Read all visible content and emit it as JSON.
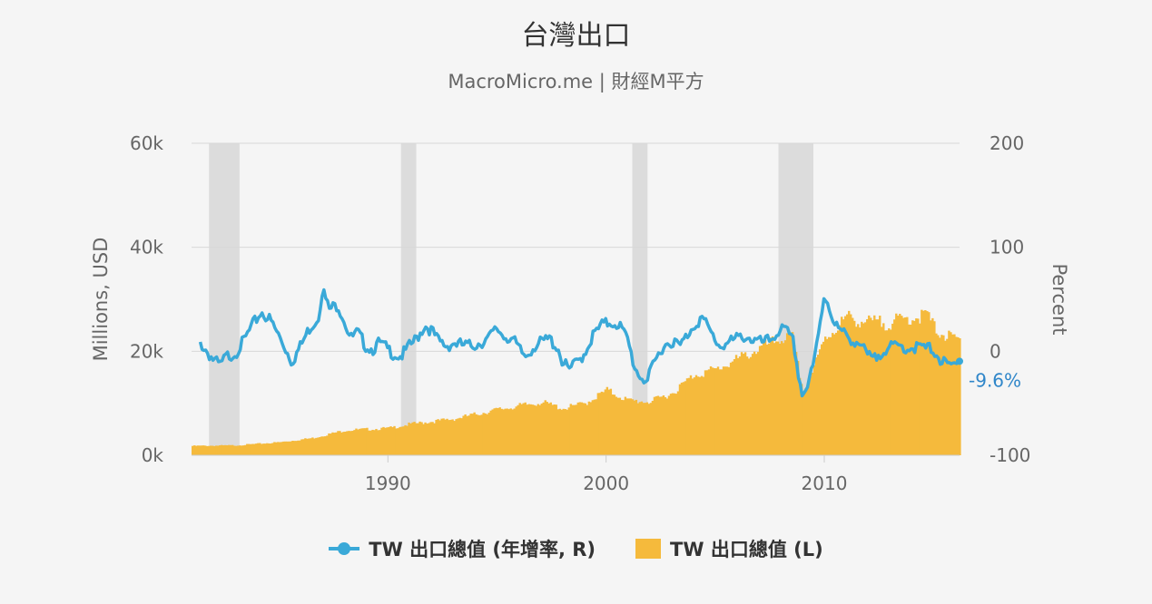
{
  "title": "台灣出口",
  "subtitle": "MacroMicro.me | 財經M平方",
  "colors": {
    "line": "#3aa9d8",
    "bar": "#f5ba3c",
    "recession": "#dcdcdc",
    "grid": "#d8d8d8",
    "last_label": "#2f86c9"
  },
  "chart_data": {
    "type": "bar+line",
    "title": "台灣出口",
    "subtitle": "MacroMicro.me | 財經M平方",
    "x_range": [
      1981.0,
      2016.2
    ],
    "x_ticks": [
      1990,
      2000,
      2010
    ],
    "left_axis": {
      "label": "Millions, USD",
      "range": [
        0,
        60000
      ],
      "ticks": [
        0,
        20000,
        40000,
        60000
      ],
      "tick_labels": [
        "0k",
        "20k",
        "40k",
        "60k"
      ]
    },
    "right_axis": {
      "label": "Percent",
      "range": [
        -100,
        200
      ],
      "ticks": [
        -100,
        0,
        100,
        200
      ],
      "tick_labels": [
        "-100",
        "0",
        "100",
        "200"
      ]
    },
    "recession_bands": [
      [
        1981.8,
        1983.2
      ],
      [
        1990.6,
        1991.3
      ],
      [
        2001.2,
        2001.9
      ],
      [
        2007.9,
        2009.5
      ]
    ],
    "series": [
      {
        "name": "TW 出口總值 (年增率, R)",
        "type": "line",
        "axis": "right",
        "points": [
          [
            1981.4,
            8
          ],
          [
            1981.7,
            0
          ],
          [
            1982.0,
            -8
          ],
          [
            1982.3,
            -14
          ],
          [
            1982.6,
            -5
          ],
          [
            1983.0,
            -2
          ],
          [
            1983.4,
            10
          ],
          [
            1983.8,
            25
          ],
          [
            1984.2,
            38
          ],
          [
            1984.6,
            30
          ],
          [
            1985.0,
            15
          ],
          [
            1985.3,
            3
          ],
          [
            1985.6,
            -10
          ],
          [
            1986.0,
            5
          ],
          [
            1986.4,
            22
          ],
          [
            1986.8,
            32
          ],
          [
            1987.0,
            60
          ],
          [
            1987.3,
            40
          ],
          [
            1987.7,
            45
          ],
          [
            1988.0,
            30
          ],
          [
            1988.3,
            12
          ],
          [
            1988.6,
            18
          ],
          [
            1989.0,
            5
          ],
          [
            1989.3,
            2
          ],
          [
            1989.6,
            8
          ],
          [
            1990.0,
            2
          ],
          [
            1990.3,
            -3
          ],
          [
            1990.6,
            -5
          ],
          [
            1991.0,
            5
          ],
          [
            1991.3,
            12
          ],
          [
            1991.7,
            25
          ],
          [
            1992.0,
            20
          ],
          [
            1992.3,
            10
          ],
          [
            1992.7,
            5
          ],
          [
            1993.0,
            8
          ],
          [
            1993.4,
            6
          ],
          [
            1993.8,
            5
          ],
          [
            1994.2,
            8
          ],
          [
            1994.6,
            12
          ],
          [
            1995.0,
            22
          ],
          [
            1995.3,
            15
          ],
          [
            1995.7,
            12
          ],
          [
            1996.0,
            2
          ],
          [
            1996.3,
            -5
          ],
          [
            1996.7,
            5
          ],
          [
            1997.0,
            8
          ],
          [
            1997.4,
            12
          ],
          [
            1997.8,
            3
          ],
          [
            1998.0,
            -10
          ],
          [
            1998.3,
            -18
          ],
          [
            1998.7,
            -10
          ],
          [
            1999.0,
            -2
          ],
          [
            1999.4,
            15
          ],
          [
            1999.8,
            25
          ],
          [
            2000.2,
            28
          ],
          [
            2000.6,
            26
          ],
          [
            2001.0,
            10
          ],
          [
            2001.3,
            -15
          ],
          [
            2001.6,
            -25
          ],
          [
            2001.9,
            -28
          ],
          [
            2002.2,
            -12
          ],
          [
            2002.6,
            5
          ],
          [
            2003.0,
            10
          ],
          [
            2003.4,
            5
          ],
          [
            2003.7,
            15
          ],
          [
            2004.0,
            25
          ],
          [
            2004.4,
            32
          ],
          [
            2004.8,
            18
          ],
          [
            2005.2,
            5
          ],
          [
            2005.6,
            8
          ],
          [
            2006.0,
            12
          ],
          [
            2006.4,
            15
          ],
          [
            2006.8,
            10
          ],
          [
            2007.2,
            8
          ],
          [
            2007.6,
            12
          ],
          [
            2008.0,
            22
          ],
          [
            2008.3,
            18
          ],
          [
            2008.6,
            8
          ],
          [
            2008.8,
            -20
          ],
          [
            2009.0,
            -42
          ],
          [
            2009.2,
            -35
          ],
          [
            2009.5,
            -15
          ],
          [
            2009.8,
            25
          ],
          [
            2010.0,
            55
          ],
          [
            2010.2,
            45
          ],
          [
            2010.5,
            25
          ],
          [
            2010.8,
            18
          ],
          [
            2011.2,
            12
          ],
          [
            2011.6,
            8
          ],
          [
            2012.0,
            -5
          ],
          [
            2012.3,
            -8
          ],
          [
            2012.7,
            2
          ],
          [
            2013.0,
            3
          ],
          [
            2013.4,
            5
          ],
          [
            2013.8,
            3
          ],
          [
            2014.2,
            4
          ],
          [
            2014.6,
            3
          ],
          [
            2015.0,
            2
          ],
          [
            2015.3,
            -8
          ],
          [
            2015.7,
            -15
          ],
          [
            2016.0,
            -13
          ],
          [
            2016.2,
            -9.6
          ]
        ]
      },
      {
        "name": "TW 出口總值 (L)",
        "type": "bar",
        "axis": "left",
        "points": [
          [
            1981.0,
            1800
          ],
          [
            1983.0,
            1900
          ],
          [
            1985.0,
            2500
          ],
          [
            1986.5,
            3300
          ],
          [
            1988.0,
            4800
          ],
          [
            1990.0,
            5200
          ],
          [
            1991.0,
            6000
          ],
          [
            1993.0,
            7000
          ],
          [
            1995.0,
            8800
          ],
          [
            1996.0,
            9500
          ],
          [
            1997.0,
            10200
          ],
          [
            1998.0,
            9000
          ],
          [
            1999.0,
            10000
          ],
          [
            2000.0,
            12500
          ],
          [
            2001.0,
            10500
          ],
          [
            2002.0,
            10300
          ],
          [
            2003.0,
            12000
          ],
          [
            2004.0,
            15500
          ],
          [
            2005.0,
            16500
          ],
          [
            2006.0,
            18500
          ],
          [
            2007.0,
            20500
          ],
          [
            2008.0,
            22500
          ],
          [
            2008.5,
            22500
          ],
          [
            2009.0,
            12000
          ],
          [
            2009.5,
            17000
          ],
          [
            2010.0,
            22500
          ],
          [
            2011.0,
            26500
          ],
          [
            2012.0,
            25500
          ],
          [
            2013.0,
            25500
          ],
          [
            2014.0,
            26500
          ],
          [
            2014.7,
            27000
          ],
          [
            2015.0,
            24500
          ],
          [
            2015.5,
            23000
          ],
          [
            2016.2,
            22000
          ]
        ]
      }
    ],
    "last_value_label": "-9.6%",
    "legend_position": "bottom-center"
  },
  "legend": [
    {
      "label": "TW 出口總值 (年增率, R)"
    },
    {
      "label": "TW 出口總值 (L)"
    }
  ]
}
